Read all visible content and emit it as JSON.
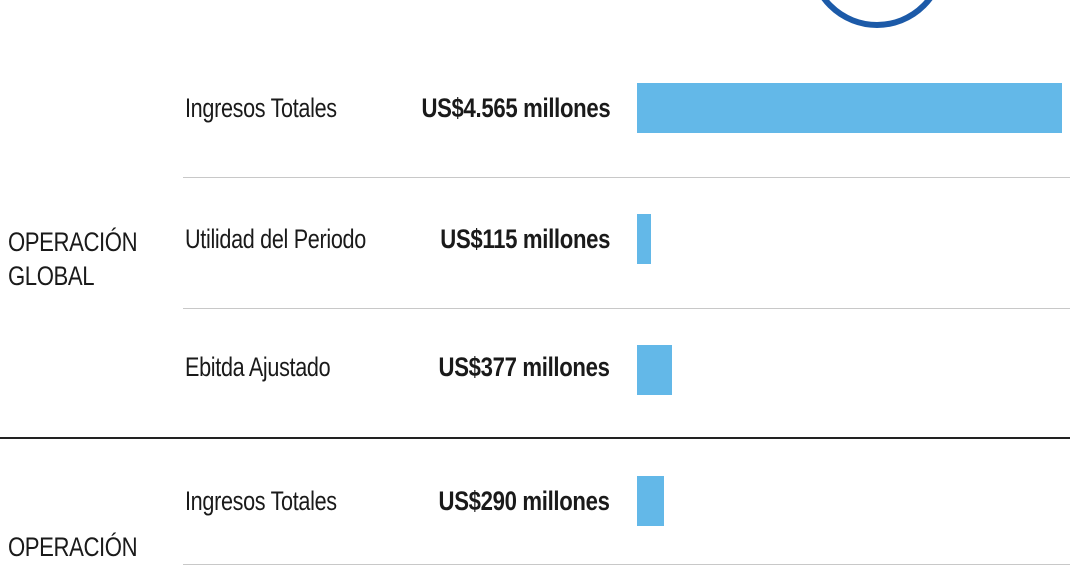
{
  "chart_data": {
    "type": "bar",
    "orientation": "horizontal",
    "groups": [
      {
        "label_lines": [
          "OPERACIÓN",
          "GLOBAL"
        ],
        "rows": [
          {
            "label": "Ingresos Totales",
            "value_text": "US$4.565 millones",
            "value": 4565
          },
          {
            "label": "Utilidad del Periodo",
            "value_text": "US$115 millones",
            "value": 115
          },
          {
            "label": "Ebitda Ajustado",
            "value_text": "US$377 millones",
            "value": 377
          }
        ]
      },
      {
        "label_lines": [
          "OPERACIÓN"
        ],
        "rows": [
          {
            "label": "Ingresos Totales",
            "value_text": "US$290 millones",
            "value": 290
          }
        ]
      }
    ],
    "xlim": [
      0,
      4565
    ],
    "unit": "US$ millones",
    "bar_color": "#63b8e8",
    "accent_color": "#1c5aa8"
  }
}
